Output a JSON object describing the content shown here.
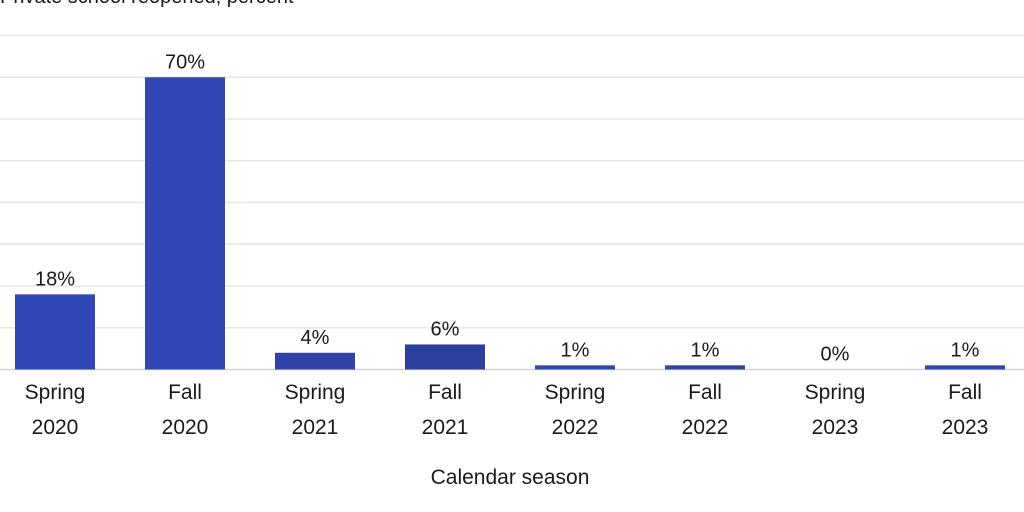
{
  "chart_data": {
    "type": "bar",
    "subtitle": "Private school reopened, percent",
    "xlabel": "Calendar season",
    "ylabel": "",
    "ylim": [
      0,
      80
    ],
    "grid": true,
    "legend": "none",
    "categories": [
      [
        "Spring",
        "2020"
      ],
      [
        "Fall",
        "2020"
      ],
      [
        "Spring",
        "2021"
      ],
      [
        "Fall",
        "2021"
      ],
      [
        "Spring",
        "2022"
      ],
      [
        "Fall",
        "2022"
      ],
      [
        "Spring",
        "2023"
      ],
      [
        "Fall",
        "2023"
      ]
    ],
    "values": [
      18,
      70,
      4,
      6,
      1,
      1,
      0,
      1
    ],
    "data_labels": [
      "18%",
      "70%",
      "4%",
      "6%",
      "1%",
      "1%",
      "0%",
      "1%"
    ],
    "colors": [
      "#3046b5",
      "#3046b5",
      "#2f43a8",
      "#2d3f9c",
      "#3046b5",
      "#2f43a8",
      "#2d3f9c",
      "#3046b5"
    ]
  }
}
